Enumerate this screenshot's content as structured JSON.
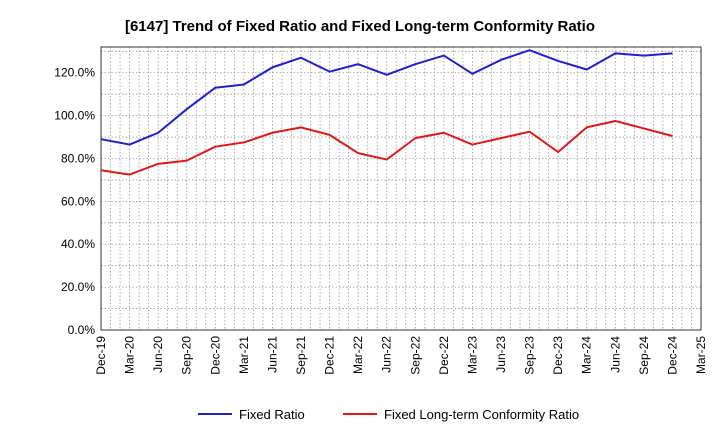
{
  "chart_data": {
    "type": "line",
    "title": "[6147]  Trend of Fixed Ratio and Fixed Long-term Conformity Ratio",
    "xlabel": "",
    "ylabel": "",
    "x_tick_labels": [
      "Dec-19",
      "Mar-20",
      "Jun-20",
      "Sep-20",
      "Dec-20",
      "Mar-21",
      "Jun-21",
      "Sep-21",
      "Dec-21",
      "Mar-22",
      "Jun-22",
      "Sep-22",
      "Dec-22",
      "Mar-23",
      "Jun-23",
      "Sep-23",
      "Dec-23",
      "Mar-24",
      "Jun-24",
      "Sep-24",
      "Dec-24",
      "Mar-25"
    ],
    "x": [
      "Dec-19",
      "Mar-20",
      "Jun-20",
      "Sep-20",
      "Dec-20",
      "Mar-21",
      "Jun-21",
      "Sep-21",
      "Dec-21",
      "Mar-22",
      "Jun-22",
      "Sep-22",
      "Dec-22",
      "Mar-23",
      "Jun-23",
      "Sep-23",
      "Dec-23",
      "Mar-24",
      "Jun-24",
      "Sep-24",
      "Dec-24"
    ],
    "y_tick_labels": [
      "0.0%",
      "20.0%",
      "40.0%",
      "60.0%",
      "80.0%",
      "100.0%",
      "120.0%"
    ],
    "y_ticks": [
      0,
      20,
      40,
      60,
      80,
      100,
      120
    ],
    "ylim": [
      0,
      132
    ],
    "grid": true,
    "legend_position": "bottom",
    "series": [
      {
        "name": "Fixed Ratio",
        "color": "#1f1fd0",
        "values": [
          89.0,
          86.5,
          92.0,
          103.0,
          113.0,
          114.5,
          122.5,
          127.0,
          120.5,
          124.0,
          119.0,
          124.0,
          128.0,
          119.5,
          126.0,
          130.5,
          125.5,
          121.5,
          129.0,
          128.0,
          129.0
        ]
      },
      {
        "name": "Fixed Long-term Conformity Ratio",
        "color": "#e01818",
        "values": [
          74.5,
          72.5,
          77.5,
          79.0,
          85.5,
          87.5,
          92.0,
          94.5,
          91.0,
          82.5,
          79.5,
          89.5,
          92.0,
          86.5,
          89.5,
          92.5,
          83.0,
          94.5,
          97.5,
          94.0,
          90.5
        ]
      }
    ]
  }
}
